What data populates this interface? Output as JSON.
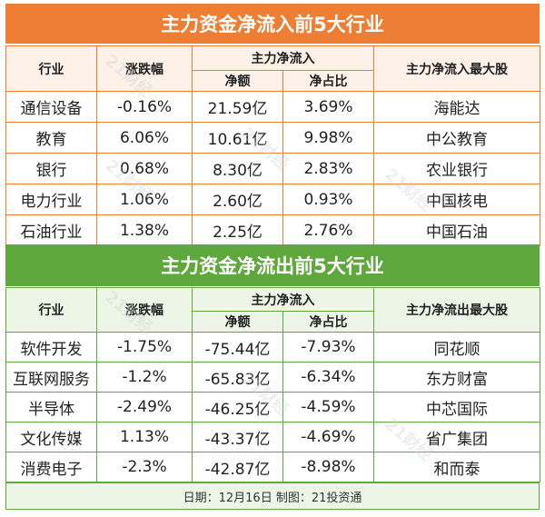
{
  "inflow": {
    "title": "主力资金净流入前5大行业",
    "headers": {
      "industry": "行业",
      "change": "涨跌幅",
      "group": "主力净流入",
      "net": "净额",
      "ratio": "净占比",
      "top_stock": "主力净流入最大股"
    },
    "rows": [
      {
        "industry": "通信设备",
        "change": "-0.16%",
        "net": "21.59亿",
        "ratio": "3.69%",
        "stock": "海能达"
      },
      {
        "industry": "教育",
        "change": "6.06%",
        "net": "10.61亿",
        "ratio": "9.98%",
        "stock": "中公教育"
      },
      {
        "industry": "银行",
        "change": "0.68%",
        "net": "8.30亿",
        "ratio": "2.83%",
        "stock": "农业银行"
      },
      {
        "industry": "电力行业",
        "change": "1.06%",
        "net": "2.60亿",
        "ratio": "0.93%",
        "stock": "中国核电"
      },
      {
        "industry": "石油行业",
        "change": "1.38%",
        "net": "2.25亿",
        "ratio": "2.76%",
        "stock": "中国石油"
      }
    ]
  },
  "outflow": {
    "title": "主力资金净流出前5大行业",
    "headers": {
      "industry": "行业",
      "change": "涨跌幅",
      "group": "主力净流入",
      "net": "净额",
      "ratio": "净占比",
      "top_stock": "主力净流出最大股"
    },
    "rows": [
      {
        "industry": "软件开发",
        "change": "-1.75%",
        "net": "-75.44亿",
        "ratio": "-7.93%",
        "stock": "同花顺"
      },
      {
        "industry": "互联网服务",
        "change": "-1.2%",
        "net": "-65.83亿",
        "ratio": "-6.34%",
        "stock": "东方财富"
      },
      {
        "industry": "半导体",
        "change": "-2.49%",
        "net": "-46.25亿",
        "ratio": "-4.59%",
        "stock": "中芯国际"
      },
      {
        "industry": "文化传媒",
        "change": "1.13%",
        "net": "-43.37亿",
        "ratio": "-4.69%",
        "stock": "省广集团"
      },
      {
        "industry": "消费电子",
        "change": "-2.3%",
        "net": "-42.87亿",
        "ratio": "-8.98%",
        "stock": "和而泰"
      }
    ]
  },
  "footer": "日期：12月16日 制图：21投资通",
  "watermark": "21财经",
  "colors": {
    "inflow_accent": "#ee7e33",
    "outflow_accent": "#5fa83d"
  }
}
